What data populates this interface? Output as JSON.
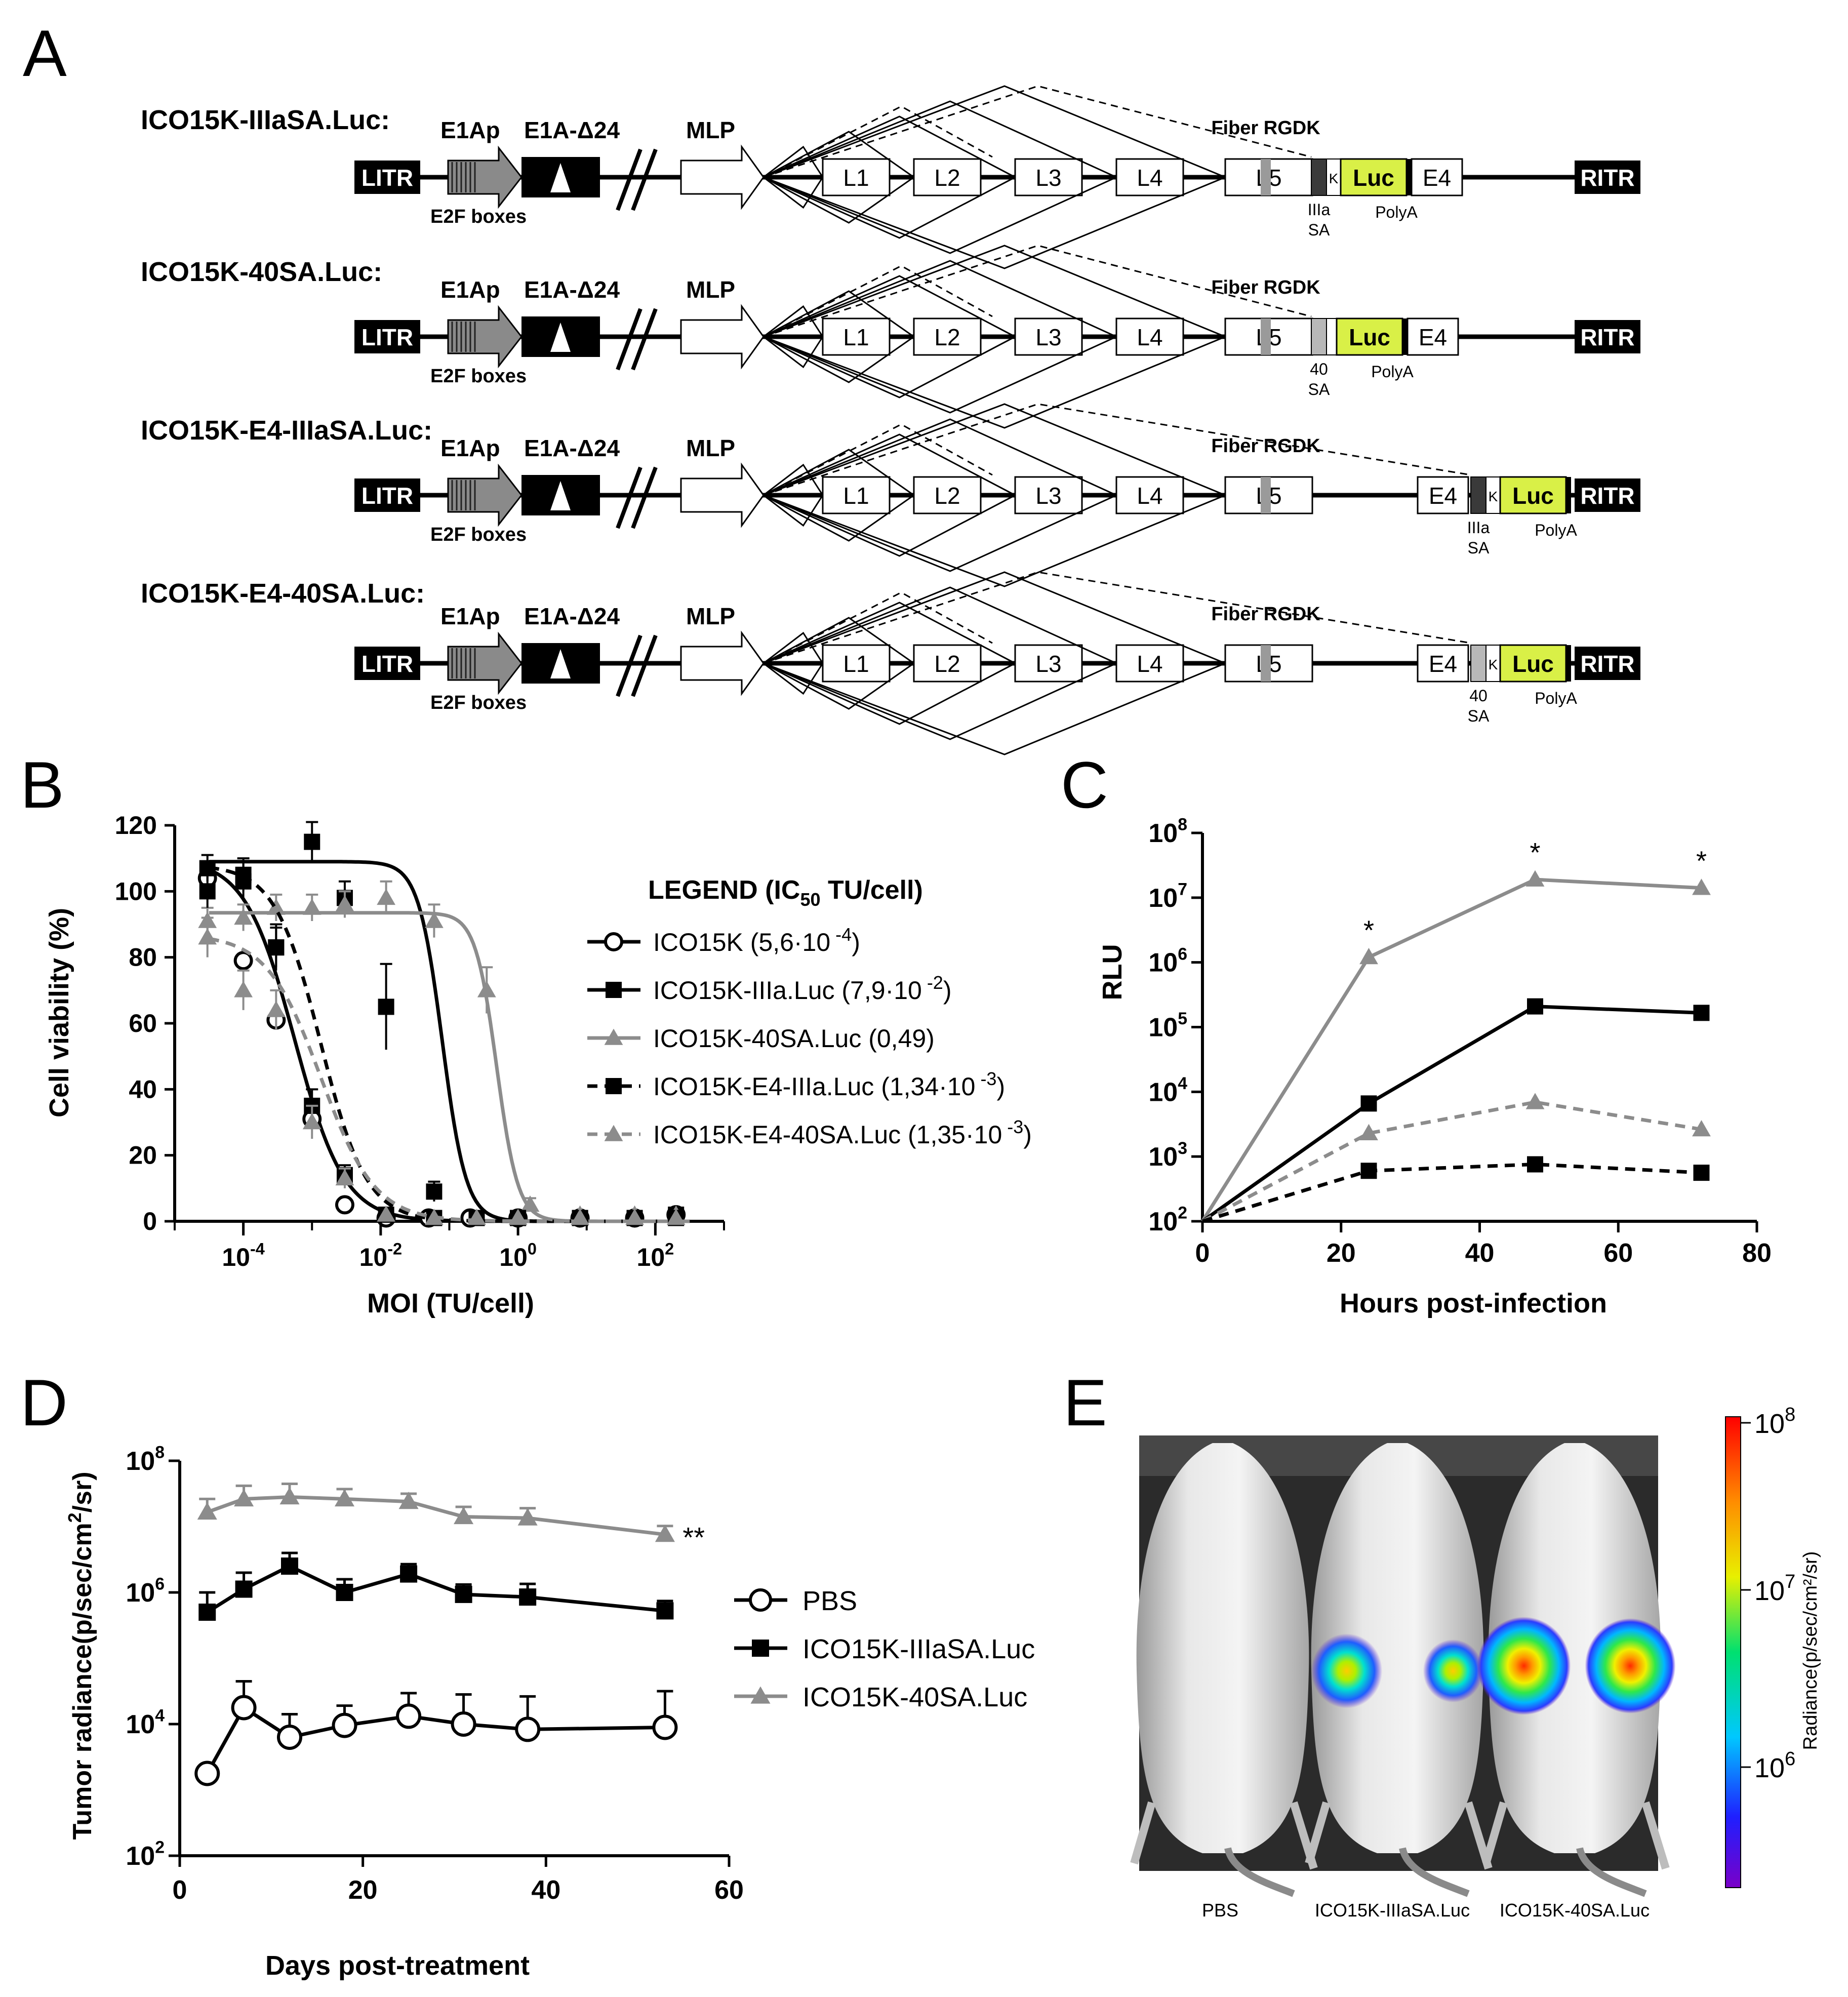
{
  "panel_labels": {
    "A": "A",
    "B": "B",
    "C": "C",
    "D": "D",
    "E": "E"
  },
  "constructs": [
    {
      "name": "ICO15K-IIIaSA.Luc:",
      "sa": "IIIa",
      "sa2": "SA",
      "k": "K",
      "e4_position": "before-luc"
    },
    {
      "name": "ICO15K-40SA.Luc:",
      "sa": "40",
      "sa2": "SA",
      "k": "",
      "e4_position": "before-luc"
    },
    {
      "name": "ICO15K-E4-IIIaSA.Luc:",
      "sa": "IIIa",
      "sa2": "SA",
      "k": "K",
      "e4_position": "after-e4"
    },
    {
      "name": "ICO15K-E4-40SA.Luc:",
      "sa": "40",
      "sa2": "SA",
      "k": "K",
      "e4_position": "after-e4"
    }
  ],
  "genome": {
    "litr": "LITR",
    "ritr": "RITR",
    "e1ap": "E1Ap",
    "e1a": "E1A-Δ24",
    "e2f": "E2F boxes",
    "mlp": "MLP",
    "late": [
      "L1",
      "L2",
      "L3",
      "L4",
      "L5"
    ],
    "fiber": "Fiber RGDK",
    "luc": "Luc",
    "e4": "E4",
    "polya": "PolyA"
  },
  "colors": {
    "black": "#000000",
    "gray": "#8c8c8c",
    "luc": "#d9f047",
    "mid_gray": "#9a9a9a"
  },
  "chart_data": [
    {
      "id": "B",
      "type": "scatter",
      "xlabel": "MOI (TU/cell)",
      "ylabel": "Cell viability (%)",
      "xscale": "log",
      "xlim": [
        1e-05,
        1000
      ],
      "ylim": [
        0,
        120
      ],
      "yticks": [
        0,
        20,
        40,
        60,
        80,
        100,
        120
      ],
      "xticks": [
        {
          "v": 0.0001,
          "b": "10",
          "e": "-4"
        },
        {
          "v": 0.01,
          "b": "10",
          "e": "-2"
        },
        {
          "v": 1,
          "b": "10",
          "e": "0"
        },
        {
          "v": 100,
          "b": "10",
          "e": "2"
        }
      ],
      "legend_title": "LEGEND (IC",
      "legend_title_sub": "50",
      "legend_title_end": " TU/cell)",
      "series": [
        {
          "name": "ICO15K",
          "label": "ICO15K (5,6·10",
          "exp": " -4",
          "close": ")",
          "marker": "circle-open",
          "color": "#000000",
          "dash": false,
          "x": [
            3e-05,
            0.0001,
            0.0003,
            0.001,
            0.003,
            0.012,
            0.05,
            0.2,
            1,
            8,
            50,
            200
          ],
          "y": [
            104,
            79,
            61,
            31,
            5,
            1,
            1,
            1,
            1,
            1,
            1,
            2
          ],
          "fit": {
            "top": 110,
            "ic50": 0.00056,
            "hill": 1.2
          }
        },
        {
          "name": "ICO15K-IIIa.Luc",
          "label": "ICO15K-IIIa.Luc (7,9·10",
          "exp": " -2",
          "close": ")",
          "marker": "square",
          "color": "#000000",
          "dash": false,
          "x": [
            3e-05,
            0.0001,
            0.0003,
            0.001,
            0.003,
            0.012,
            0.06,
            0.25,
            1,
            8,
            50,
            200
          ],
          "y": [
            107,
            103,
            83,
            115,
            98,
            65,
            9,
            1,
            1,
            1,
            1,
            2
          ],
          "err": [
            4,
            6,
            7,
            6,
            5,
            13,
            3,
            1,
            1,
            1,
            1,
            1
          ],
          "fit": {
            "top": 109,
            "ic50": 0.079,
            "hill": 2.5
          }
        },
        {
          "name": "ICO15K-40SA.Luc",
          "label": "ICO15K-40SA.Luc (0,49)",
          "exp": "",
          "close": "",
          "marker": "triangle",
          "color": "#8c8c8c",
          "dash": false,
          "x": [
            3e-05,
            0.0001,
            0.0003,
            0.001,
            0.003,
            0.012,
            0.06,
            0.35,
            1.5,
            8,
            50,
            200
          ],
          "y": [
            91,
            92,
            95,
            95,
            96,
            98,
            91,
            70,
            5,
            2,
            2,
            2
          ],
          "err": [
            4,
            4,
            4,
            4,
            4,
            5,
            5,
            7,
            2,
            1,
            1,
            1
          ],
          "fit": {
            "top": 93.5,
            "ic50": 0.49,
            "hill": 2.8
          }
        },
        {
          "name": "ICO15K-E4-IIIa.Luc",
          "label": "ICO15K-E4-IIIa.Luc (1,34·10",
          "exp": " -3",
          "close": ")",
          "marker": "square",
          "color": "#000000",
          "dash": true,
          "x": [
            3e-05,
            0.0001,
            0.0003,
            0.001,
            0.003,
            0.012,
            0.06,
            0.25,
            1,
            8,
            50,
            200
          ],
          "y": [
            100,
            105,
            83,
            35,
            14,
            2,
            1,
            1,
            1,
            1,
            1,
            1
          ],
          "err": [
            5,
            5,
            6,
            5,
            3,
            1,
            1,
            1,
            1,
            1,
            1,
            1
          ],
          "fit": {
            "top": 108,
            "ic50": 0.00134,
            "hill": 1.3
          }
        },
        {
          "name": "ICO15K-E4-40SA.Luc",
          "label": "ICO15K-E4-40SA.Luc (1,35·10",
          "exp": " -3",
          "close": ")",
          "marker": "triangle",
          "color": "#8c8c8c",
          "dash": true,
          "x": [
            3e-05,
            0.0001,
            0.0003,
            0.001,
            0.003,
            0.012,
            0.06,
            0.25,
            1,
            8,
            50,
            200
          ],
          "y": [
            86,
            70,
            64,
            30,
            13,
            2,
            1,
            1,
            1,
            1,
            1,
            1
          ],
          "err": [
            6,
            6,
            6,
            5,
            3,
            1,
            1,
            1,
            1,
            1,
            1,
            1
          ],
          "fit": {
            "top": 87,
            "ic50": 0.00135,
            "hill": 1.1
          }
        }
      ]
    },
    {
      "id": "C",
      "type": "line",
      "xlabel": "Hours post-infection",
      "ylabel": "RLU",
      "yscale": "log",
      "xlim": [
        0,
        80
      ],
      "ylim": [
        2,
        8
      ],
      "xticks": [
        0,
        20,
        40,
        60,
        80
      ],
      "yticks_exp": [
        2,
        3,
        4,
        5,
        6,
        7,
        8
      ],
      "tick_base": "10",
      "significance": "*",
      "series": [
        {
          "name": "ICO15K-40SA.Luc",
          "marker": "triangle",
          "color": "#8c8c8c",
          "dash": false,
          "x": [
            0,
            24,
            48,
            72
          ],
          "log_y": [
            2,
            6.08,
            7.28,
            7.15
          ],
          "star": [
            false,
            true,
            true,
            true
          ]
        },
        {
          "name": "ICO15K-IIIa.Luc",
          "marker": "square",
          "color": "#000000",
          "dash": false,
          "x": [
            0,
            24,
            48,
            72
          ],
          "log_y": [
            2,
            3.82,
            5.32,
            5.22
          ]
        },
        {
          "name": "ICO15K-E4-40SA.Luc",
          "marker": "triangle",
          "color": "#8c8c8c",
          "dash": true,
          "x": [
            0,
            24,
            48,
            72
          ],
          "log_y": [
            2,
            3.36,
            3.84,
            3.42
          ]
        },
        {
          "name": "ICO15K-E4-IIIa.Luc",
          "marker": "square",
          "color": "#000000",
          "dash": true,
          "x": [
            0,
            24,
            48,
            72
          ],
          "log_y": [
            2,
            2.78,
            2.88,
            2.75
          ]
        }
      ]
    },
    {
      "id": "D",
      "type": "line",
      "xlabel": "Days post-treatment",
      "ylabel": "Tumor radiance(p/sec/cm",
      "ylabel_sup": "2",
      "ylabel_end": "/sr)",
      "yscale": "log",
      "xlim": [
        0,
        60
      ],
      "ylim": [
        2,
        8
      ],
      "xticks": [
        0,
        20,
        40,
        60
      ],
      "yticks_exp": [
        2,
        4,
        6,
        8
      ],
      "tick_base": "10",
      "significance": "**",
      "series": [
        {
          "name": "PBS",
          "marker": "circle-open",
          "color": "#000000",
          "x": [
            3,
            7,
            12,
            18,
            25,
            31,
            38,
            53
          ],
          "log_y": [
            3.25,
            4.25,
            3.8,
            3.98,
            4.12,
            4.0,
            3.92,
            3.95
          ],
          "err": [
            0,
            0.4,
            0.35,
            0.3,
            0.35,
            0.45,
            0.5,
            0.55
          ]
        },
        {
          "name": "ICO15K-IIIaSA.Luc",
          "marker": "square",
          "color": "#000000",
          "x": [
            3,
            7,
            12,
            18,
            25,
            31,
            38,
            53
          ],
          "log_y": [
            5.7,
            6.05,
            6.4,
            6.0,
            6.28,
            5.97,
            5.93,
            5.72
          ],
          "err": [
            0.3,
            0.25,
            0.2,
            0.2,
            0.15,
            0.15,
            0.2,
            0.15
          ]
        },
        {
          "name": "ICO15K-40SA.Luc",
          "marker": "triangle",
          "color": "#8c8c8c",
          "x": [
            3,
            7,
            12,
            18,
            25,
            31,
            38,
            53
          ],
          "log_y": [
            7.22,
            7.42,
            7.45,
            7.42,
            7.38,
            7.15,
            7.13,
            6.88
          ],
          "err": [
            0.2,
            0.2,
            0.2,
            0.15,
            0.12,
            0.15,
            0.15,
            0.13
          ]
        }
      ]
    }
  ],
  "panel_e": {
    "mice": [
      "PBS",
      "ICO15K-IIIaSA.Luc",
      "ICO15K-40SA.Luc"
    ],
    "colorbar_label": "Radiance(p/sec/cm²/sr)",
    "colorbar_ticks": [
      {
        "b": "10",
        "e": "8"
      },
      {
        "b": "10",
        "e": "7"
      },
      {
        "b": "10",
        "e": "6"
      }
    ],
    "spots": [
      {
        "mouse": 1,
        "side": "left",
        "intensity": 0.55
      },
      {
        "mouse": 1,
        "side": "right",
        "intensity": 0.35
      },
      {
        "mouse": 2,
        "side": "left",
        "intensity": 0.95
      },
      {
        "mouse": 2,
        "side": "right",
        "intensity": 0.9
      }
    ]
  }
}
